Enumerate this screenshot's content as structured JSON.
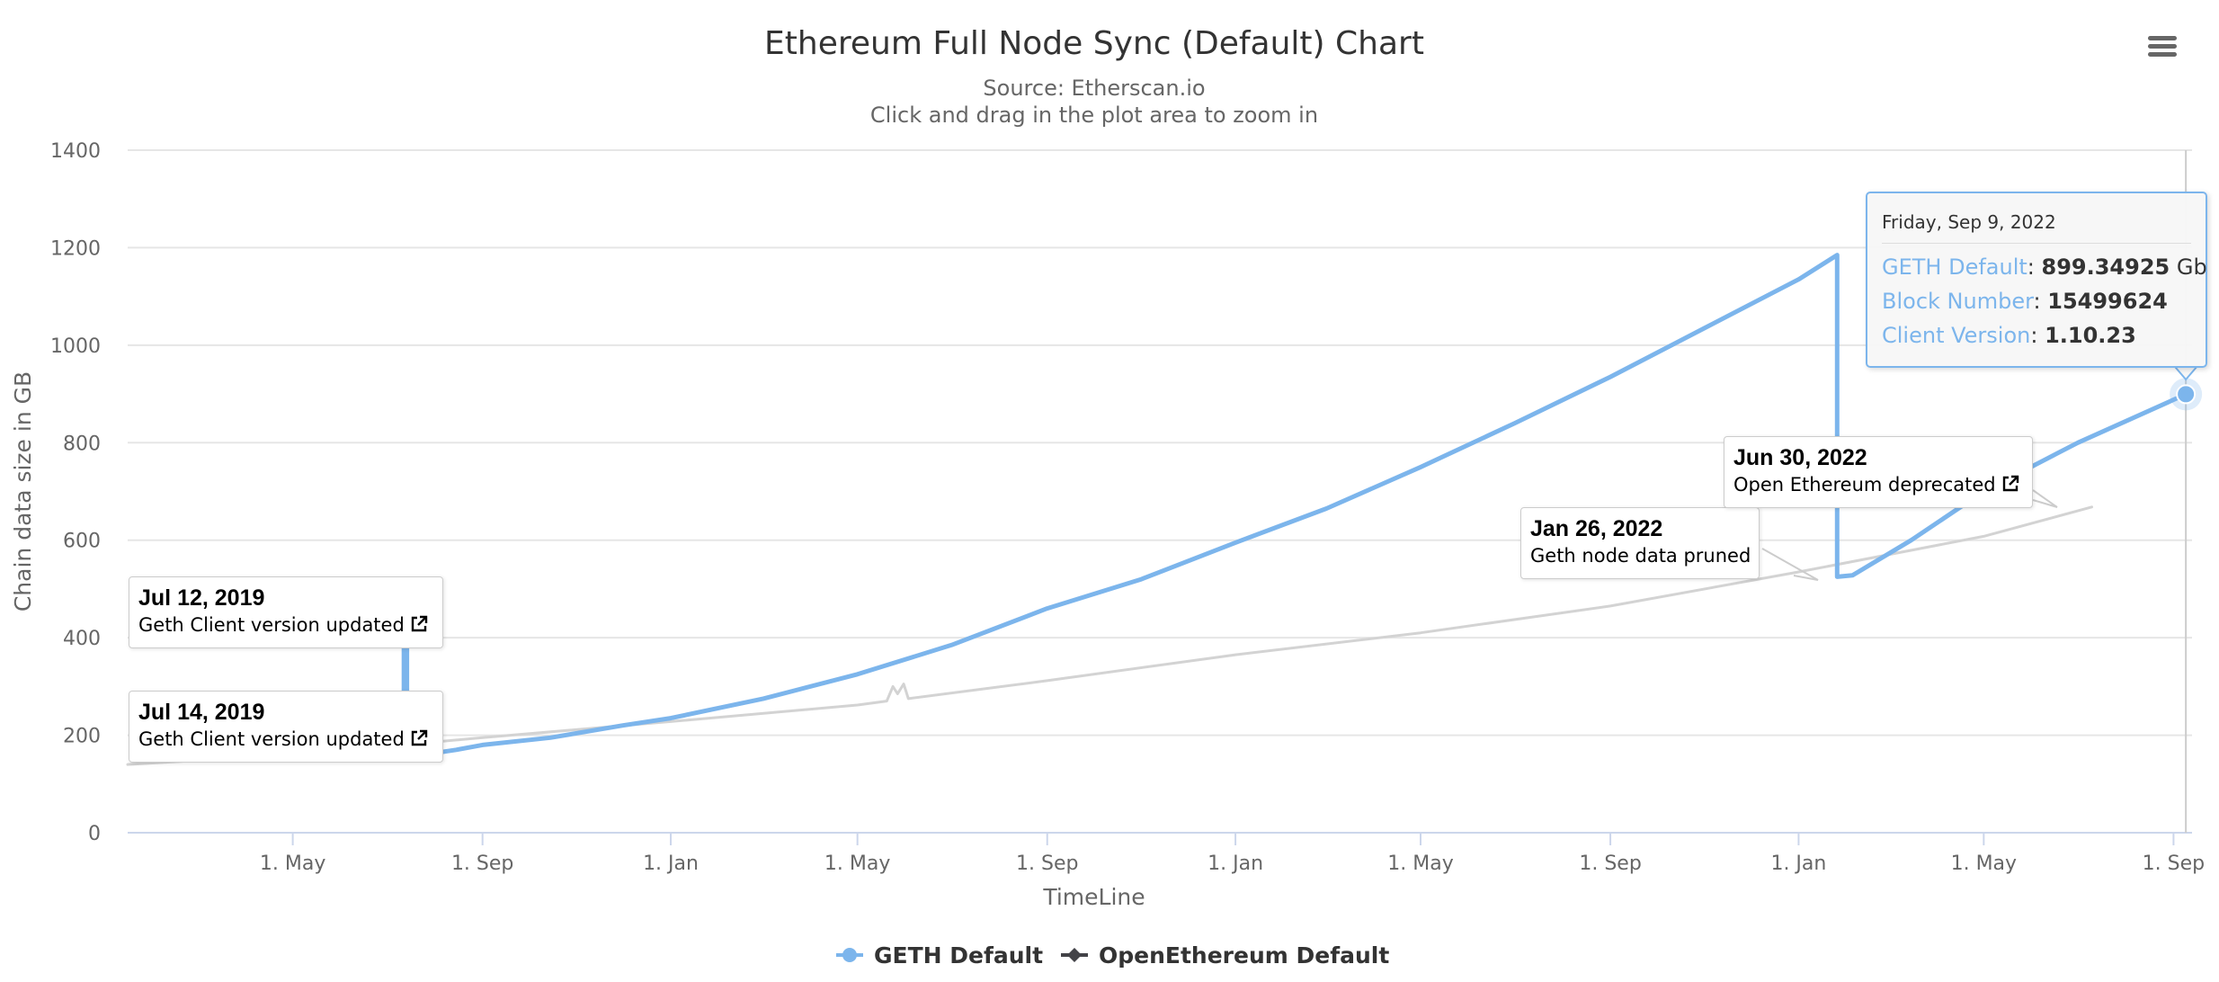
{
  "header": {
    "menu_icon": "hamburger-menu-icon"
  },
  "colors": {
    "geth": "#7cb5ec",
    "openethereum": "#d3d3d3",
    "grid": "#e6e6e6",
    "axis_text": "#666666",
    "title": "#333333"
  },
  "tooltip": {
    "date": "Friday, Sep 9, 2022",
    "rows": [
      {
        "key": "GETH Default",
        "value": "899.34925",
        "unit": " Gb"
      },
      {
        "key": "Block Number",
        "value": "15499624",
        "unit": ""
      },
      {
        "key": "Client Version",
        "value": "1.10.23",
        "unit": ""
      }
    ]
  },
  "annotations": [
    {
      "date": "Jul 12, 2019",
      "text": "Geth Client version updated",
      "icon": "external-link-icon"
    },
    {
      "date": "Jul 14, 2019",
      "text": "Geth Client version updated",
      "icon": "external-link-icon"
    },
    {
      "date": "Jan 26, 2022",
      "text": "Geth node data pruned",
      "icon": ""
    },
    {
      "date": "Jun 30, 2022",
      "text": "Open Ethereum deprecated",
      "icon": "external-link-icon"
    }
  ],
  "chart_data": {
    "type": "line",
    "title": "Ethereum Full Node Sync (Default) Chart",
    "subtitle": "Source: Etherscan.io",
    "subtitle2": "Click and drag in the plot area to zoom in",
    "xlabel": "TimeLine",
    "ylabel": "Chain data size in GB",
    "ylim": [
      0,
      1400
    ],
    "xlim": [
      "2019-01-14",
      "2022-09-13"
    ],
    "y_ticks": [
      0,
      200,
      400,
      600,
      800,
      1000,
      1200,
      1400
    ],
    "x_ticks": [
      {
        "date": "2019-05-01",
        "label": "1. May"
      },
      {
        "date": "2019-09-01",
        "label": "1. Sep"
      },
      {
        "date": "2020-01-01",
        "label": "1. Jan"
      },
      {
        "date": "2020-05-01",
        "label": "1. May"
      },
      {
        "date": "2020-09-01",
        "label": "1. Sep"
      },
      {
        "date": "2021-01-01",
        "label": "1. Jan"
      },
      {
        "date": "2021-05-01",
        "label": "1. May"
      },
      {
        "date": "2021-09-01",
        "label": "1. Sep"
      },
      {
        "date": "2022-01-01",
        "label": "1. Jan"
      },
      {
        "date": "2022-05-01",
        "label": "1. May"
      },
      {
        "date": "2022-09-01",
        "label": "1. Sep"
      }
    ],
    "grid": true,
    "legend_position": "bottom-center",
    "series": [
      {
        "name": "GETH Default",
        "color": "#7cb5ec",
        "points": [
          [
            "2019-07-12",
            150
          ],
          [
            "2019-07-12",
            395
          ],
          [
            "2019-07-14",
            395
          ],
          [
            "2019-07-14",
            155
          ],
          [
            "2019-08-15",
            170
          ],
          [
            "2019-09-01",
            180
          ],
          [
            "2019-10-15",
            195
          ],
          [
            "2019-12-01",
            220
          ],
          [
            "2020-01-01",
            235
          ],
          [
            "2020-03-01",
            275
          ],
          [
            "2020-05-01",
            325
          ],
          [
            "2020-07-01",
            385
          ],
          [
            "2020-09-01",
            460
          ],
          [
            "2020-11-01",
            520
          ],
          [
            "2021-01-01",
            595
          ],
          [
            "2021-03-01",
            665
          ],
          [
            "2021-05-01",
            750
          ],
          [
            "2021-07-01",
            840
          ],
          [
            "2021-09-01",
            935
          ],
          [
            "2021-11-01",
            1035
          ],
          [
            "2022-01-01",
            1135
          ],
          [
            "2022-01-26",
            1185
          ],
          [
            "2022-01-26",
            525
          ],
          [
            "2022-02-05",
            528
          ],
          [
            "2022-03-15",
            600
          ],
          [
            "2022-05-01",
            700
          ],
          [
            "2022-07-01",
            800
          ],
          [
            "2022-09-09",
            899.35
          ]
        ]
      },
      {
        "name": "OpenEthereum Default",
        "color": "#d3d3d3",
        "points": [
          [
            "2019-01-14",
            140
          ],
          [
            "2019-05-01",
            160
          ],
          [
            "2019-09-01",
            195
          ],
          [
            "2020-01-01",
            228
          ],
          [
            "2020-05-01",
            262
          ],
          [
            "2020-05-20",
            270
          ],
          [
            "2020-05-24",
            300
          ],
          [
            "2020-05-27",
            285
          ],
          [
            "2020-05-31",
            305
          ],
          [
            "2020-06-03",
            275
          ],
          [
            "2020-09-01",
            312
          ],
          [
            "2021-01-01",
            365
          ],
          [
            "2021-05-01",
            410
          ],
          [
            "2021-09-01",
            465
          ],
          [
            "2022-01-01",
            535
          ],
          [
            "2022-05-01",
            608
          ],
          [
            "2022-07-10",
            668
          ]
        ]
      }
    ],
    "highlighted_point": {
      "series": "GETH Default",
      "x": "2022-09-09",
      "y": 899.35
    }
  }
}
